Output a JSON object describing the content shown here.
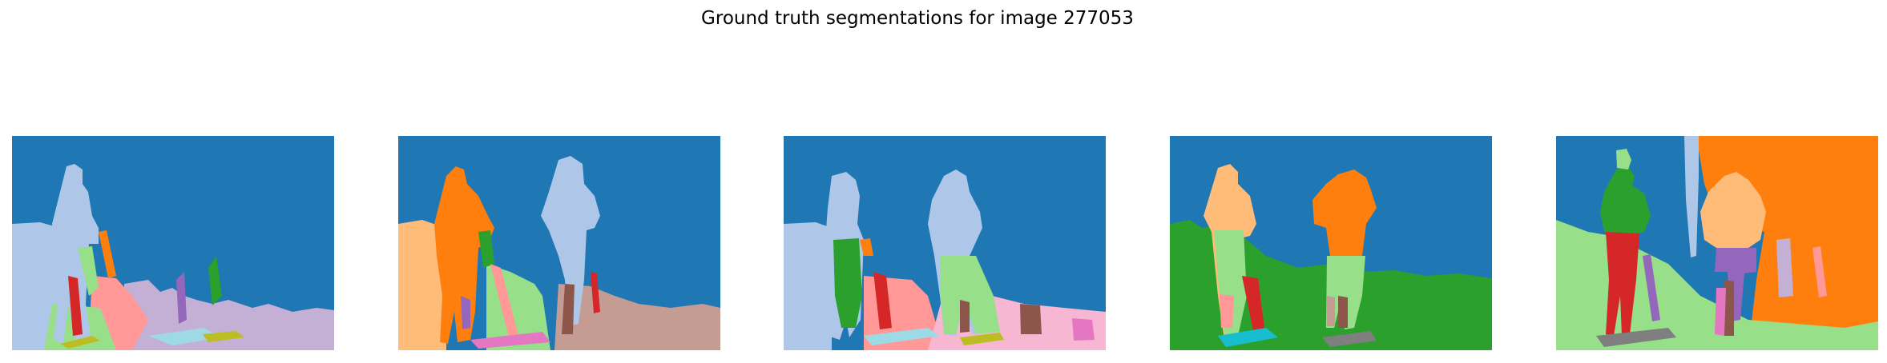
{
  "figure": {
    "title": "Ground truth segmentations for image 277053"
  },
  "panels": [
    {
      "index": 1,
      "palette": "tab20"
    },
    {
      "index": 2,
      "palette": "tab20"
    },
    {
      "index": 3,
      "palette": "tab20"
    },
    {
      "index": 4,
      "palette": "tab20"
    },
    {
      "index": 5,
      "palette": "tab20"
    }
  ],
  "colors": {
    "c0": "#1f77b4",
    "c1": "#aec7e8",
    "c2": "#ff7f0e",
    "c3": "#ffbb78",
    "c4": "#2ca02c",
    "c5": "#98df8a",
    "c6": "#d62728",
    "c7": "#ff9896",
    "c8": "#9467bd",
    "c9": "#c5b0d5",
    "c10": "#8c564b",
    "c11": "#c49c94",
    "c12": "#e377c2",
    "c13": "#f7b6d2",
    "c14": "#7f7f7f",
    "c15": "#bcbd22",
    "c16": "#17becf",
    "c17": "#9edae5"
  }
}
